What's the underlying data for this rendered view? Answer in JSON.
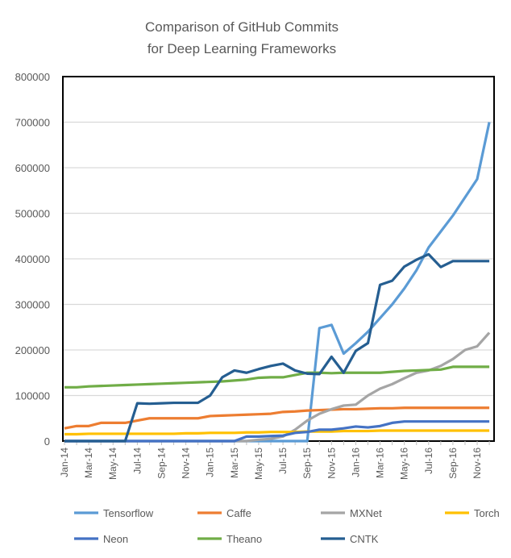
{
  "chart_data": {
    "type": "line",
    "title": [
      "Comparison of GitHub Commits",
      "for Deep Learning Frameworks"
    ],
    "xlabel": "",
    "ylabel": "",
    "ylim": [
      0,
      800000
    ],
    "yticks": [
      "0",
      "100000",
      "200000",
      "300000",
      "400000",
      "500000",
      "600000",
      "700000",
      "800000"
    ],
    "x": [
      "Jan-14",
      "Feb-14",
      "Mar-14",
      "Apr-14",
      "May-14",
      "Jun-14",
      "Jul-14",
      "Aug-14",
      "Sep-14",
      "Oct-14",
      "Nov-14",
      "Dec-14",
      "Jan-15",
      "Feb-15",
      "Mar-15",
      "Apr-15",
      "May-15",
      "Jun-15",
      "Jul-15",
      "Aug-15",
      "Sep-15",
      "Oct-15",
      "Nov-15",
      "Dec-15",
      "Jan-16",
      "Feb-16",
      "Mar-16",
      "Apr-16",
      "May-16",
      "Jun-16",
      "Jul-16",
      "Aug-16",
      "Sep-16",
      "Oct-16",
      "Nov-16",
      "Dec-16"
    ],
    "xtick_labels": [
      "Jan-14",
      "Mar-14",
      "May-14",
      "Jul-14",
      "Sep-14",
      "Nov-14",
      "Jan-15",
      "Mar-15",
      "May-15",
      "Jul-15",
      "Sep-15",
      "Nov-15",
      "Jan-16",
      "Mar-16",
      "May-16",
      "Jul-16",
      "Sep-16",
      "Nov-16"
    ],
    "grid": true,
    "legend_position": "bottom",
    "series": [
      {
        "name": "Tensorflow",
        "color": "#5B9BD5",
        "values": [
          0,
          0,
          0,
          0,
          0,
          0,
          0,
          0,
          0,
          0,
          0,
          0,
          0,
          0,
          0,
          0,
          0,
          0,
          0,
          0,
          0,
          248000,
          255000,
          192000,
          215000,
          240000,
          270000,
          300000,
          335000,
          375000,
          425000,
          460000,
          495000,
          535000,
          575000,
          700000
        ]
      },
      {
        "name": "Caffe",
        "color": "#ED7D31",
        "values": [
          28000,
          33000,
          33000,
          40000,
          40000,
          40000,
          45000,
          50000,
          50000,
          50000,
          50000,
          50000,
          55000,
          56000,
          57000,
          58000,
          59000,
          60000,
          64000,
          65000,
          67000,
          68000,
          69000,
          70000,
          70000,
          71000,
          72000,
          72000,
          73000,
          73000,
          73000,
          73000,
          73000,
          73000,
          73000,
          73000
        ]
      },
      {
        "name": "MXNet",
        "color": "#A5A5A5",
        "values": [
          0,
          0,
          0,
          0,
          0,
          0,
          0,
          0,
          0,
          0,
          0,
          0,
          0,
          0,
          0,
          0,
          3000,
          5000,
          10000,
          25000,
          45000,
          60000,
          70000,
          78000,
          80000,
          100000,
          115000,
          125000,
          138000,
          150000,
          155000,
          165000,
          180000,
          200000,
          208000,
          238000
        ]
      },
      {
        "name": "Torch",
        "color": "#FFC000",
        "values": [
          15000,
          15000,
          16000,
          16000,
          16000,
          16000,
          16000,
          16000,
          16000,
          16000,
          17000,
          17000,
          18000,
          18000,
          18000,
          19000,
          19000,
          20000,
          20000,
          20000,
          21000,
          21000,
          21000,
          22000,
          22000,
          22000,
          23000,
          23000,
          23000,
          23000,
          23000,
          23000,
          23000,
          23000,
          23000,
          23000
        ]
      },
      {
        "name": "Neon",
        "color": "#4472C4",
        "values": [
          0,
          0,
          0,
          0,
          0,
          0,
          0,
          0,
          0,
          0,
          0,
          0,
          0,
          0,
          0,
          10000,
          10000,
          11000,
          12000,
          18000,
          20000,
          25000,
          25000,
          28000,
          32000,
          30000,
          33000,
          40000,
          43000,
          43000,
          43000,
          43000,
          43000,
          43000,
          43000,
          43000
        ]
      },
      {
        "name": "Theano",
        "color": "#70AD47",
        "values": [
          118000,
          118000,
          120000,
          121000,
          122000,
          123000,
          124000,
          125000,
          126000,
          127000,
          128000,
          129000,
          130000,
          131000,
          133000,
          135000,
          139000,
          140000,
          140000,
          145000,
          150000,
          150000,
          149000,
          150000,
          150000,
          150000,
          150000,
          152000,
          154000,
          155000,
          156000,
          157000,
          163000,
          163000,
          163000,
          163000
        ]
      },
      {
        "name": "CNTK",
        "color": "#255E91",
        "values": [
          0,
          0,
          0,
          0,
          0,
          0,
          83000,
          82000,
          83000,
          84000,
          84000,
          84000,
          100000,
          140000,
          155000,
          150000,
          158000,
          165000,
          170000,
          155000,
          148000,
          147000,
          185000,
          150000,
          198000,
          215000,
          343000,
          352000,
          383000,
          398000,
          410000,
          382000,
          395000,
          395000,
          395000,
          395000
        ]
      }
    ]
  }
}
